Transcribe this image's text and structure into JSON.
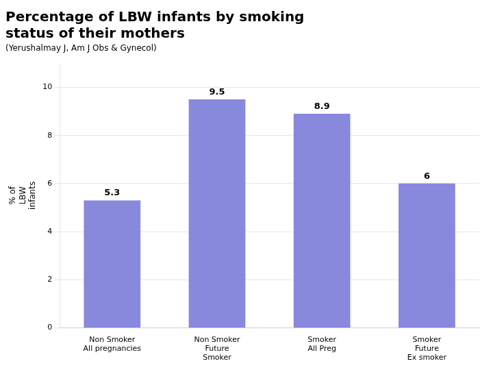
{
  "chart_data": {
    "type": "bar",
    "title": [
      "Percentage of LBW infants by smoking",
      "status of their mothers"
    ],
    "subtitle": "(Yerushalmay J, Am J Obs & Gynecol)",
    "categories": [
      "Non Smoker\nAll pregnancies",
      "Non Smoker\nFuture\nSmoker",
      "Smoker\nAll Preg",
      "Smoker\nFuture\nEx smoker"
    ],
    "values": [
      5.3,
      9.5,
      8.9,
      6.0
    ],
    "ylabel": "% of\nLBW\ninfants",
    "color": "#8888dd",
    "ylim": [
      0,
      11
    ],
    "yticks": [
      0,
      2,
      4,
      6,
      8,
      10
    ],
    "grid": true,
    "legend": false,
    "data_labels": true
  }
}
